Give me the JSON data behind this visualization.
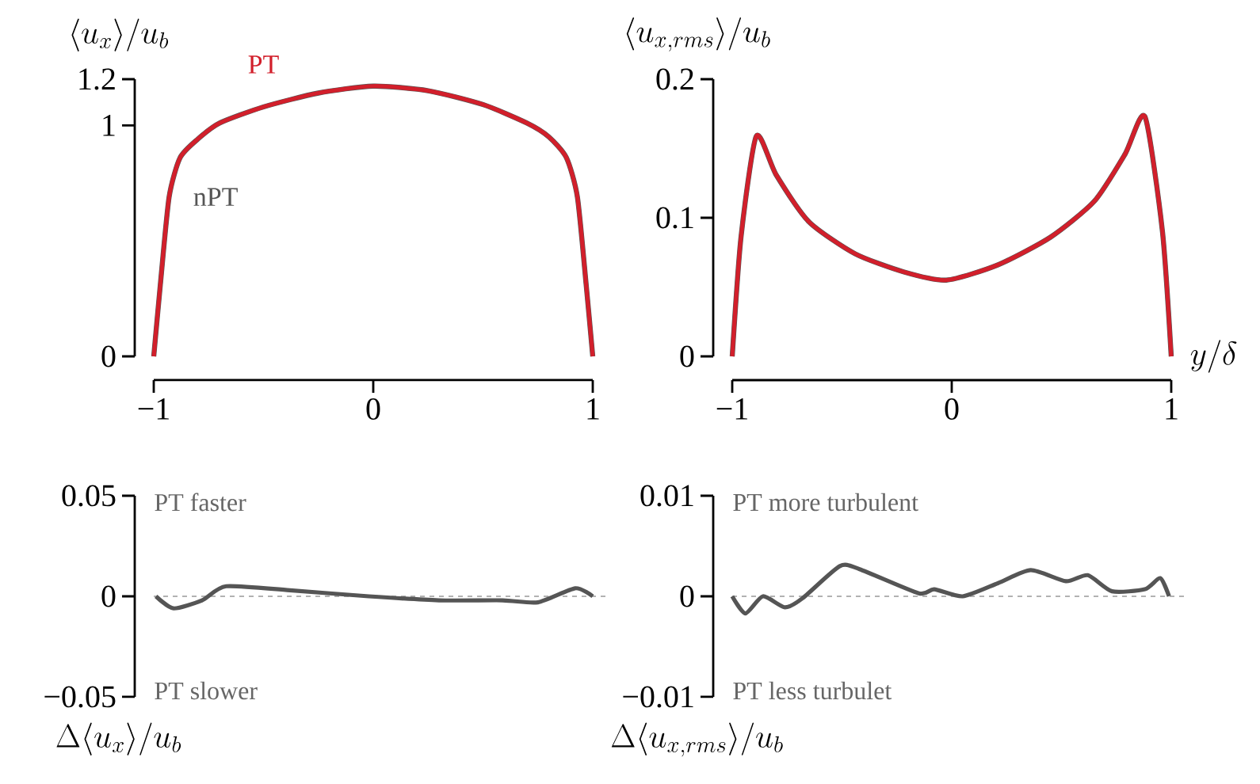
{
  "chart_data": [
    {
      "type": "line",
      "ylabel": "\\langle u_x\\rangle/u_b",
      "xlim": [
        -1,
        1
      ],
      "xticks": [
        {
          "value": -1,
          "label": "−1"
        },
        0,
        1
      ],
      "ylim": [
        0,
        1.2
      ],
      "yticks": [
        0,
        1,
        1.2
      ],
      "x": [
        -1,
        -0.97,
        -0.93,
        -0.88,
        -0.8,
        -0.7,
        -0.5,
        -0.25,
        0,
        0.25,
        0.5,
        0.7,
        0.8,
        0.88,
        0.93,
        0.97,
        1
      ],
      "series": [
        {
          "name": "nPT",
          "color": "#555555",
          "values": [
            0,
            0.31,
            0.69,
            0.86,
            0.94,
            1.01,
            1.08,
            1.14,
            1.17,
            1.15,
            1.09,
            1.01,
            0.95,
            0.86,
            0.69,
            0.31,
            0
          ]
        },
        {
          "name": "PT",
          "color": "#d21f2b",
          "values": [
            0,
            0.31,
            0.69,
            0.86,
            0.94,
            1.01,
            1.08,
            1.14,
            1.17,
            1.15,
            1.09,
            1.01,
            0.95,
            0.86,
            0.69,
            0.31,
            0
          ]
        }
      ]
    },
    {
      "type": "line",
      "ylabel": "\\langle u_{x,rms}\\rangle/u_b",
      "xlabel": "y/\\delta",
      "xlim": [
        -1,
        1
      ],
      "xticks": [
        {
          "value": -1,
          "label": "−1"
        },
        0,
        1
      ],
      "ylim": [
        0,
        0.2
      ],
      "yticks": [
        0,
        0.1,
        0.2
      ],
      "x": [
        -1,
        -0.96,
        -0.89,
        -0.8,
        -0.65,
        -0.44,
        -0.22,
        -0.025,
        0.21,
        0.45,
        0.65,
        0.79,
        0.88,
        0.96,
        1
      ],
      "series": [
        {
          "color": "#555555",
          "values": [
            0,
            0.086,
            0.159,
            0.131,
            0.097,
            0.074,
            0.061,
            0.055,
            0.066,
            0.086,
            0.112,
            0.146,
            0.173,
            0.09,
            0
          ]
        },
        {
          "color": "#d21f2b",
          "values": [
            0,
            0.086,
            0.159,
            0.131,
            0.097,
            0.074,
            0.061,
            0.055,
            0.066,
            0.086,
            0.112,
            0.146,
            0.173,
            0.09,
            0
          ]
        }
      ]
    },
    {
      "type": "line",
      "ylabel": "\\Delta\\langle u_x\\rangle/u_b",
      "xlim": [
        -1,
        1
      ],
      "ylim": [
        -0.05,
        0.05
      ],
      "yticks": [
        {
          "value": -0.05,
          "label": "−0.05"
        },
        0,
        0.05
      ],
      "tick_labels": "y",
      "x": [
        -0.99,
        -0.91,
        -0.78,
        -0.67,
        -0.38,
        -0.02,
        0.3,
        0.59,
        0.75,
        0.92,
        1
      ],
      "series": [
        {
          "color": "#555555",
          "values": [
            0,
            -0.006,
            -0.002,
            0.005,
            0.003,
            0,
            -0.002,
            -0.002,
            -0.003,
            0.004,
            0
          ]
        }
      ],
      "ref_lines": [
        {
          "axis": "y",
          "value": 0,
          "color": "#999999",
          "line_style": "dashed"
        }
      ],
      "annotations": [
        "PT faster",
        "PT slower"
      ]
    },
    {
      "type": "line",
      "ylabel": "\\Delta\\langle u_{x,rms}\\rangle/u_b",
      "xlim": [
        -1,
        1
      ],
      "ylim": [
        -0.01,
        0.01
      ],
      "yticks": [
        {
          "value": -0.01,
          "label": "−0.01"
        },
        0,
        0.01
      ],
      "tick_labels": "y",
      "x": [
        -1,
        -0.94,
        -0.86,
        -0.76,
        -0.68,
        -0.51,
        -0.42,
        -0.15,
        -0.08,
        0.05,
        0.21,
        0.36,
        0.52,
        0.62,
        0.73,
        0.88,
        0.95,
        0.99
      ],
      "series": [
        {
          "color": "#555555",
          "values": [
            0,
            -0.0017,
            0,
            -0.0011,
            -0.0002,
            0.003,
            0.0027,
            0.0003,
            0.0007,
            0,
            0.0013,
            0.0026,
            0.0015,
            0.0021,
            0.0005,
            0.0007,
            0.0018,
            0
          ]
        }
      ],
      "ref_lines": [
        {
          "axis": "y",
          "value": 0,
          "color": "#999999",
          "line_style": "dashed"
        }
      ],
      "annotations": [
        "PT more turbulent",
        "PT less turbulet"
      ]
    }
  ]
}
